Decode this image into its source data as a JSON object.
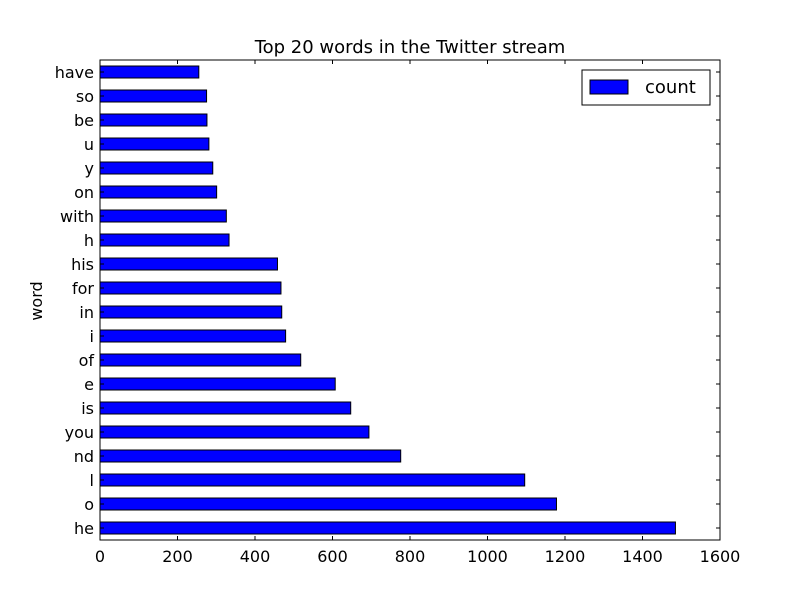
{
  "chart_data": {
    "type": "bar",
    "orientation": "horizontal",
    "title": "Top 20 words in the Twitter stream",
    "xlabel": "",
    "ylabel": "word",
    "xlim": [
      0,
      1600
    ],
    "xticks": [
      0,
      200,
      400,
      600,
      800,
      1000,
      1200,
      1400,
      1600
    ],
    "grid": false,
    "legend_position": "top-right",
    "categories": [
      "he",
      "o",
      "l",
      "nd",
      "you",
      "is",
      "e",
      "of",
      "i",
      "in",
      "for",
      "his",
      "h",
      "with",
      "on",
      "y",
      "u",
      "be",
      "so",
      "have"
    ],
    "series": [
      {
        "name": "count",
        "color": "#0000ff",
        "values": [
          1485,
          1178,
          1096,
          776,
          694,
          647,
          607,
          518,
          479,
          469,
          467,
          458,
          333,
          326,
          301,
          291,
          281,
          276,
          275,
          255
        ]
      }
    ]
  }
}
